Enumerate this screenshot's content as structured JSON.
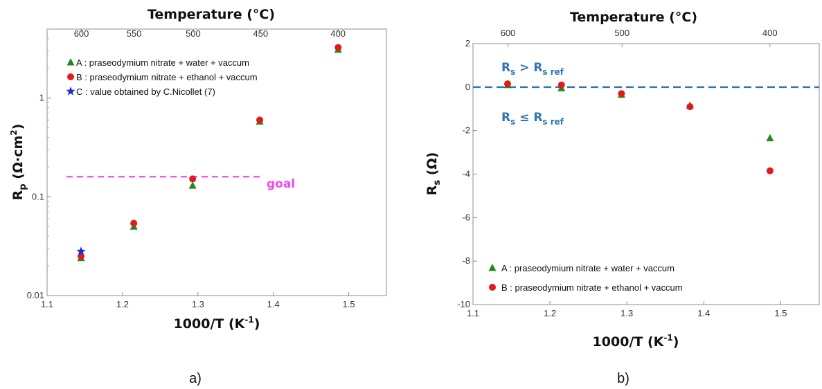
{
  "panel_labels": [
    "a)",
    "b)"
  ],
  "chart_data": [
    {
      "type": "scatter",
      "yscale": "log",
      "top_axis_title": "Temperature (°C)",
      "top_ticks": [
        {
          "x": 1.1455,
          "label": "600"
        },
        {
          "x": 1.2153,
          "label": "550"
        },
        {
          "x": 1.2937,
          "label": "500"
        },
        {
          "x": 1.3831,
          "label": "450"
        },
        {
          "x": 1.4859,
          "label": "400"
        }
      ],
      "xlabel": "1000/T (K⁻¹)",
      "ylabel": "Rp (Ω·cm²)",
      "xlim": [
        1.1,
        1.55
      ],
      "ylim": [
        0.01,
        5
      ],
      "xticks": [
        "1.1",
        "1.2",
        "1.3",
        "1.4",
        "1.5"
      ],
      "yticks": [
        "0.01",
        "0.1",
        "1"
      ],
      "grid": false,
      "legend_position": "top-left",
      "series": [
        {
          "name": "A : praseodymium nitrate + water + vaccum",
          "marker": "triangle",
          "color": "#1e8a1e",
          "x": [
            1.145,
            1.215,
            1.293,
            1.382,
            1.486
          ],
          "y": [
            0.024,
            0.05,
            0.13,
            0.58,
            3.1
          ]
        },
        {
          "name": "B : praseodymium nitrate + ethanol + vaccum",
          "marker": "circle",
          "color": "#e3191c",
          "x": [
            1.145,
            1.215,
            1.293,
            1.382,
            1.486
          ],
          "y": [
            0.025,
            0.054,
            0.152,
            0.6,
            3.25
          ]
        },
        {
          "name": "C : value obtained by C.Nicollet (7)",
          "marker": "star",
          "color": "#1f2bd9",
          "x": [
            1.145
          ],
          "y": [
            0.028
          ]
        }
      ],
      "reference_line": {
        "y": 0.16,
        "label": "goal",
        "color": "#ee4bee"
      }
    },
    {
      "type": "scatter",
      "top_axis_title": "Temperature (°C)",
      "top_ticks": [
        {
          "x": 1.1455,
          "label": "600"
        },
        {
          "x": 1.2937,
          "label": "500"
        },
        {
          "x": 1.4859,
          "label": "400"
        }
      ],
      "xlabel": "1000/T (K⁻¹)",
      "ylabel": "Rs (Ω)",
      "xlim": [
        1.1,
        1.55
      ],
      "ylim": [
        -10,
        2
      ],
      "xticks": [
        "1.1",
        "1.2",
        "1.3",
        "1.4",
        "1.5"
      ],
      "yticks": [
        "2",
        "0",
        "-2",
        "-4",
        "-6",
        "-8",
        "-10"
      ],
      "grid": false,
      "legend_position": "bottom-left",
      "series": [
        {
          "name": "A : praseodymium nitrate + water + vaccum",
          "marker": "triangle",
          "color": "#1e8a1e",
          "x": [
            1.145,
            1.215,
            1.293,
            1.382,
            1.486
          ],
          "y": [
            0.1,
            -0.05,
            -0.35,
            -0.85,
            -2.35
          ]
        },
        {
          "name": "B : praseodymium nitrate + ethanol + vaccum",
          "marker": "circle",
          "color": "#e3191c",
          "x": [
            1.145,
            1.215,
            1.293,
            1.382,
            1.486
          ],
          "y": [
            0.15,
            0.1,
            -0.3,
            -0.9,
            -3.85
          ]
        }
      ],
      "reference_line": {
        "y": 0,
        "color": "#2e75b6"
      },
      "annotations": [
        "Rs > Rs ref",
        "Rs ≤ Rs ref"
      ]
    }
  ]
}
